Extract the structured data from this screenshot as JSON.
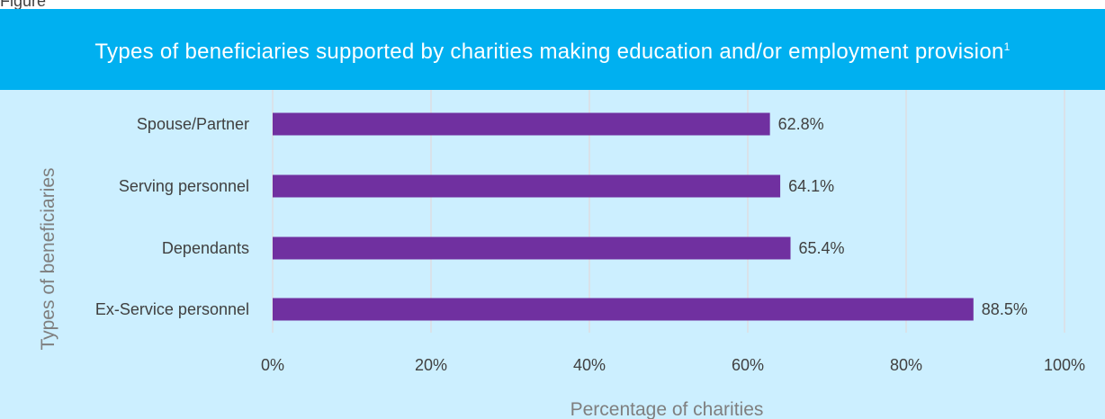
{
  "figure": {
    "label": "Figure"
  },
  "title": {
    "main": "Types of beneficiaries supported by charities making education and/or employment provision",
    "superscript": "1"
  },
  "colors": {
    "banner": "#00b0f0",
    "plot_background": "#ccefff",
    "bar": "#7030a0",
    "gridline": "#e6d5d5"
  },
  "chart_data": {
    "type": "bar",
    "orientation": "horizontal",
    "categories": [
      "Spouse/Partner",
      "Serving personnel",
      "Dependants",
      "Ex-Service personnel"
    ],
    "values": [
      62.8,
      64.1,
      65.4,
      88.5
    ],
    "data_labels": [
      "62.8%",
      "64.1%",
      "65.4%",
      "88.5%"
    ],
    "xlabel": "Percentage of charities",
    "ylabel": "Types of beneficiaries",
    "xlim": [
      0,
      100
    ],
    "xticks": [
      0,
      20,
      40,
      60,
      80,
      100
    ],
    "xtick_labels": [
      "0%",
      "20%",
      "40%",
      "60%",
      "80%",
      "100%"
    ],
    "grid": "vertical",
    "legend": "none"
  }
}
